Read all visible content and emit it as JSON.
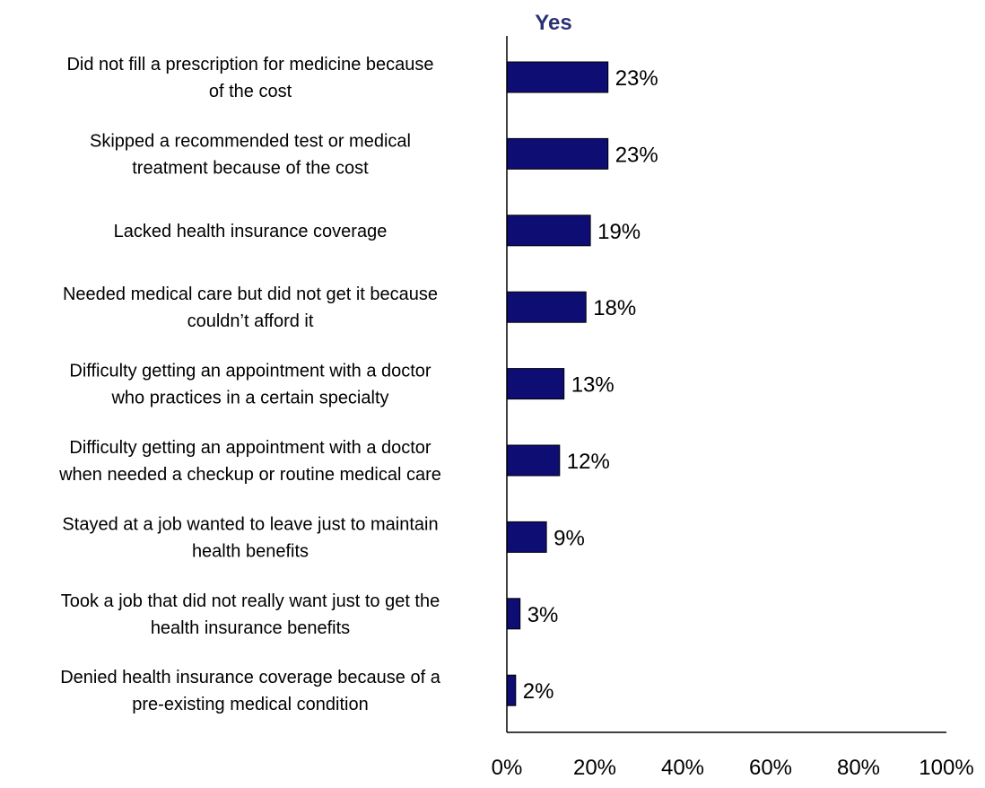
{
  "chart_data": {
    "type": "bar",
    "orientation": "horizontal",
    "title": "",
    "xlabel": "",
    "ylabel": "",
    "series_header": "Yes",
    "categories": [
      [
        "Did not fill a prescription for medicine because",
        "of the cost"
      ],
      [
        "Skipped a recommended test or medical",
        "treatment because of the cost"
      ],
      [
        "Lacked health insurance coverage"
      ],
      [
        "Needed medical care but did not get it because",
        "couldn’t afford it"
      ],
      [
        "Difficulty getting an appointment with a doctor",
        "who practices in a certain specialty"
      ],
      [
        "Difficulty getting an appointment with a doctor",
        "when needed a checkup or routine medical care"
      ],
      [
        "Stayed at a job wanted to leave just to maintain",
        "health benefits"
      ],
      [
        "Took a job that did not really want just to get the",
        "health insurance benefits"
      ],
      [
        "Denied health insurance coverage because of a",
        "pre-existing medical condition"
      ]
    ],
    "series": [
      {
        "name": "Yes",
        "values": [
          23,
          23,
          19,
          18,
          13,
          12,
          9,
          3,
          2
        ],
        "value_labels": [
          "23%",
          "23%",
          "19%",
          "18%",
          "13%",
          "12%",
          "9%",
          "3%",
          "2%"
        ]
      }
    ],
    "xlim": [
      0,
      100
    ],
    "xticks": [
      "0%",
      "20%",
      "40%",
      "60%",
      "80%",
      "100%"
    ],
    "grid": false,
    "colors": {
      "bar_fill": "#0d0d73",
      "bar_stroke": "#000000",
      "series_header": "#2b3174",
      "axis": "#000000"
    }
  }
}
